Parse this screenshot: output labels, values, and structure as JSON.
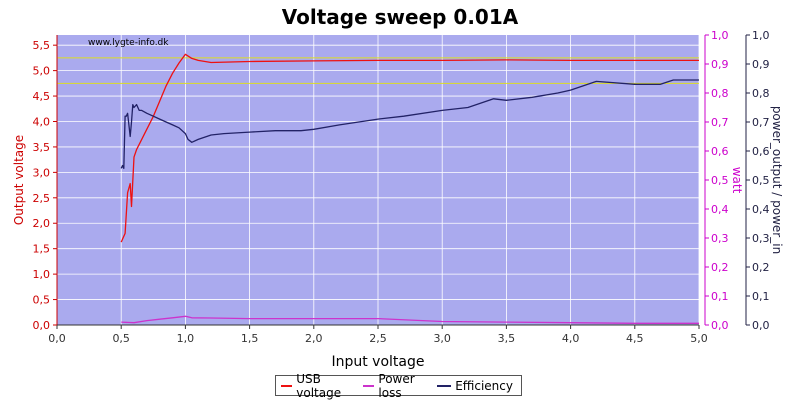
{
  "chart_data": {
    "type": "line",
    "title": "Voltage sweep 0.01A",
    "watermark": "www.lygte-info.dk",
    "xlabel": "Input voltage",
    "ylabel_left": "Output voltage",
    "ylabel_right1": "watt",
    "ylabel_right2": "power_output / power_in",
    "xlim": [
      0,
      5
    ],
    "ylim_left": [
      0,
      5.7
    ],
    "ylim_right": [
      0,
      1.0
    ],
    "x_ticks": [
      "0,0",
      "0,5",
      "1,0",
      "1,5",
      "2,0",
      "2,5",
      "3,0",
      "3,5",
      "4,0",
      "4,5",
      "5,0"
    ],
    "y_left_ticks": [
      "0,0",
      "0,5",
      "1,0",
      "1,5",
      "2,0",
      "2,5",
      "3,0",
      "3,5",
      "4,0",
      "4,5",
      "5,0",
      "5,5"
    ],
    "y_right_ticks": [
      "0,0",
      "0,1",
      "0,2",
      "0,3",
      "0,4",
      "0,5",
      "0,6",
      "0,7",
      "0,8",
      "0,9",
      "1,0"
    ],
    "grid": true,
    "reference_lines_left": [
      5.25,
      4.75
    ],
    "legend_position": "bottom-center",
    "colors": {
      "plot_bg": "#aaaaee",
      "usb": "#ee1111",
      "loss": "#cc33cc",
      "efficiency": "#222266",
      "ref": "#dddd22",
      "left_axis": "#cc0000",
      "right_axis": "#cc00cc",
      "right2_axis": "#222244"
    },
    "series": [
      {
        "name": "USB voltage",
        "axis": "left",
        "color_key": "usb",
        "x": [
          0.5,
          0.53,
          0.55,
          0.57,
          0.58,
          0.6,
          0.62,
          0.65,
          0.7,
          0.75,
          0.8,
          0.85,
          0.9,
          0.95,
          1.0,
          1.05,
          1.1,
          1.2,
          1.5,
          2.0,
          2.5,
          3.0,
          3.5,
          4.0,
          4.5,
          5.0
        ],
        "y": [
          1.63,
          1.8,
          2.6,
          2.78,
          2.33,
          3.3,
          3.45,
          3.6,
          3.85,
          4.1,
          4.4,
          4.7,
          4.95,
          5.15,
          5.32,
          5.24,
          5.2,
          5.16,
          5.18,
          5.19,
          5.2,
          5.2,
          5.21,
          5.2,
          5.2,
          5.2
        ]
      },
      {
        "name": "Power loss",
        "axis": "right",
        "color_key": "loss",
        "x": [
          0.5,
          0.6,
          0.7,
          0.8,
          0.9,
          1.0,
          1.05,
          1.2,
          1.5,
          2.0,
          2.5,
          3.0,
          3.5,
          4.0,
          4.5,
          5.0
        ],
        "y": [
          0.01,
          0.008,
          0.015,
          0.02,
          0.025,
          0.03,
          0.025,
          0.024,
          0.022,
          0.022,
          0.022,
          0.012,
          0.01,
          0.008,
          0.006,
          0.006
        ]
      },
      {
        "name": "Efficiency",
        "axis": "right",
        "color_key": "efficiency",
        "x": [
          0.5,
          0.51,
          0.52,
          0.53,
          0.54,
          0.55,
          0.57,
          0.58,
          0.59,
          0.6,
          0.62,
          0.64,
          0.66,
          0.7,
          0.75,
          0.8,
          0.85,
          0.9,
          0.95,
          1.0,
          1.02,
          1.05,
          1.1,
          1.2,
          1.3,
          1.5,
          1.7,
          1.9,
          2.0,
          2.2,
          2.5,
          2.7,
          3.0,
          3.2,
          3.4,
          3.5,
          3.7,
          3.9,
          4.0,
          4.2,
          4.5,
          4.7,
          4.8,
          5.0
        ],
        "y": [
          0.54,
          0.55,
          0.54,
          0.72,
          0.72,
          0.73,
          0.65,
          0.7,
          0.76,
          0.75,
          0.76,
          0.74,
          0.74,
          0.73,
          0.72,
          0.71,
          0.7,
          0.69,
          0.68,
          0.66,
          0.64,
          0.63,
          0.64,
          0.655,
          0.66,
          0.665,
          0.67,
          0.67,
          0.675,
          0.69,
          0.71,
          0.72,
          0.74,
          0.75,
          0.78,
          0.775,
          0.785,
          0.8,
          0.81,
          0.84,
          0.83,
          0.83,
          0.845,
          0.845
        ]
      }
    ]
  }
}
